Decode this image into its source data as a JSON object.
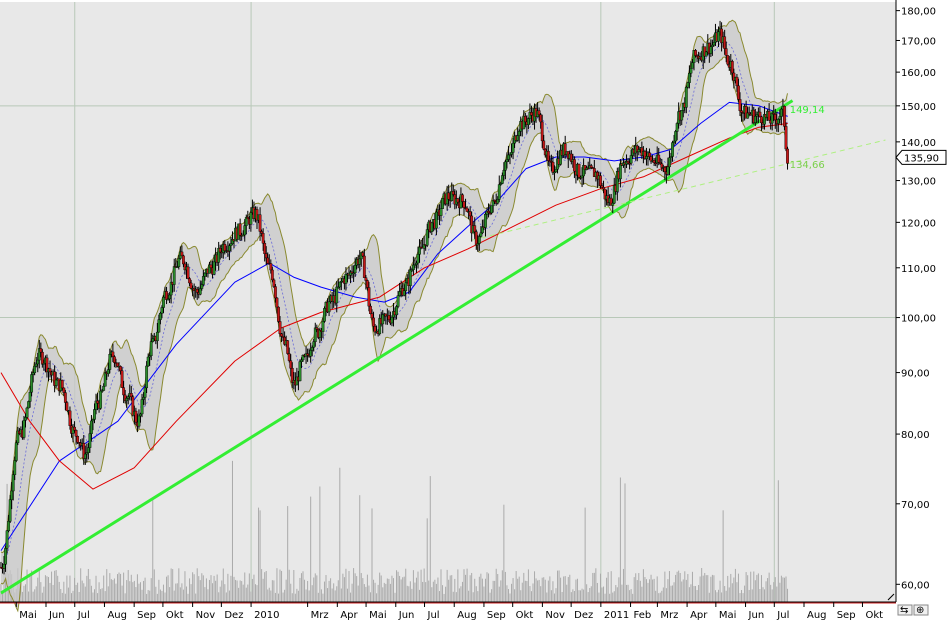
{
  "chart_data": {
    "type": "candlestick",
    "title": "",
    "xlabel": "",
    "ylabel": "",
    "yscale": "log",
    "ylim": [
      58,
      183
    ],
    "grid": true,
    "y_ticks": [
      {
        "value": 60,
        "label": "60,00"
      },
      {
        "value": 70,
        "label": "70,00"
      },
      {
        "value": 80,
        "label": "80,00"
      },
      {
        "value": 90,
        "label": "90,00"
      },
      {
        "value": 100,
        "label": "100,00"
      },
      {
        "value": 110,
        "label": "110,00"
      },
      {
        "value": 120,
        "label": "120,00"
      },
      {
        "value": 130,
        "label": "130,00"
      },
      {
        "value": 140,
        "label": "140,00"
      },
      {
        "value": 150,
        "label": "150,00"
      },
      {
        "value": 160,
        "label": "160,00"
      },
      {
        "value": 170,
        "label": "170,00"
      },
      {
        "value": 180,
        "label": "180,00"
      }
    ],
    "months": [
      {
        "label": "Mai",
        "date": "2009-05"
      },
      {
        "label": "Jun",
        "date": "2009-06"
      },
      {
        "label": "Jul",
        "date": "2009-07"
      },
      {
        "label": "Aug",
        "date": "2009-08"
      },
      {
        "label": "Sep",
        "date": "2009-09"
      },
      {
        "label": "Okt",
        "date": "2009-10"
      },
      {
        "label": "Nov",
        "date": "2009-11"
      },
      {
        "label": "Dez",
        "date": "2009-12"
      },
      {
        "label": "2010",
        "date": "2010-01"
      },
      {
        "label": "Mrz",
        "date": "2010-03"
      },
      {
        "label": "Apr",
        "date": "2010-04"
      },
      {
        "label": "Mai",
        "date": "2010-05"
      },
      {
        "label": "Jun",
        "date": "2010-06"
      },
      {
        "label": "Jul",
        "date": "2010-07"
      },
      {
        "label": "Aug",
        "date": "2010-08"
      },
      {
        "label": "Sep",
        "date": "2010-09"
      },
      {
        "label": "Okt",
        "date": "2010-10"
      },
      {
        "label": "Nov",
        "date": "2010-11"
      },
      {
        "label": "Dez",
        "date": "2010-12"
      },
      {
        "label": "2011",
        "date": "2011-01"
      },
      {
        "label": "Feb",
        "date": "2011-02"
      },
      {
        "label": "Mrz",
        "date": "2011-03"
      },
      {
        "label": "Apr",
        "date": "2011-04"
      },
      {
        "label": "Mai",
        "date": "2011-05"
      },
      {
        "label": "Jun",
        "date": "2011-06"
      },
      {
        "label": "Jul",
        "date": "2011-07"
      },
      {
        "label": "Aug",
        "date": "2011-08"
      },
      {
        "label": "Sep",
        "date": "2011-09"
      },
      {
        "label": "Okt",
        "date": "2011-10"
      }
    ],
    "price_path": [
      [
        "2009-04-15",
        62
      ],
      [
        "2009-05-05",
        80
      ],
      [
        "2009-05-25",
        93
      ],
      [
        "2009-06-15",
        88
      ],
      [
        "2009-07-02",
        80
      ],
      [
        "2009-07-12",
        77
      ],
      [
        "2009-07-25",
        85
      ],
      [
        "2009-08-10",
        93
      ],
      [
        "2009-08-25",
        86
      ],
      [
        "2009-09-05",
        82
      ],
      [
        "2009-09-20",
        95
      ],
      [
        "2009-10-05",
        105
      ],
      [
        "2009-10-20",
        112
      ],
      [
        "2009-11-05",
        105
      ],
      [
        "2009-11-20",
        110
      ],
      [
        "2009-12-05",
        115
      ],
      [
        "2009-12-20",
        118
      ],
      [
        "2010-01-05",
        122
      ],
      [
        "2010-01-20",
        110
      ],
      [
        "2010-02-05",
        95
      ],
      [
        "2010-02-15",
        88
      ],
      [
        "2010-02-25",
        92
      ],
      [
        "2010-03-10",
        97
      ],
      [
        "2010-03-25",
        103
      ],
      [
        "2010-04-10",
        108
      ],
      [
        "2010-04-25",
        112
      ],
      [
        "2010-05-10",
        98
      ],
      [
        "2010-05-25",
        100
      ],
      [
        "2010-06-10",
        106
      ],
      [
        "2010-06-25",
        113
      ],
      [
        "2010-07-10",
        120
      ],
      [
        "2010-07-25",
        126
      ],
      [
        "2010-08-10",
        125
      ],
      [
        "2010-08-25",
        116
      ],
      [
        "2010-09-10",
        124
      ],
      [
        "2010-09-25",
        135
      ],
      [
        "2010-10-10",
        145
      ],
      [
        "2010-10-25",
        148
      ],
      [
        "2010-11-10",
        133
      ],
      [
        "2010-11-25",
        138
      ],
      [
        "2010-12-10",
        132
      ],
      [
        "2010-12-25",
        132
      ],
      [
        "2011-01-10",
        125
      ],
      [
        "2011-01-25",
        135
      ],
      [
        "2011-02-10",
        138
      ],
      [
        "2011-02-25",
        135
      ],
      [
        "2011-03-10",
        133
      ],
      [
        "2011-03-25",
        148
      ],
      [
        "2011-04-10",
        165
      ],
      [
        "2011-04-25",
        168
      ],
      [
        "2011-05-05",
        172
      ],
      [
        "2011-05-15",
        163
      ],
      [
        "2011-05-30",
        148
      ],
      [
        "2011-06-15",
        147
      ],
      [
        "2011-06-30",
        146
      ],
      [
        "2011-07-10",
        148
      ],
      [
        "2011-07-15",
        136
      ]
    ],
    "series": [
      {
        "name": "",
        "color": "#0000ff",
        "points": [
          [
            "2009-04-15",
            64
          ],
          [
            "2009-06-15",
            76
          ],
          [
            "2009-08-15",
            82
          ],
          [
            "2009-10-15",
            95
          ],
          [
            "2009-12-15",
            107
          ],
          [
            "2010-01-20",
            111
          ],
          [
            "2010-02-15",
            108
          ],
          [
            "2010-03-15",
            106
          ],
          [
            "2010-04-20",
            104
          ],
          [
            "2010-05-20",
            103
          ],
          [
            "2010-06-15",
            105
          ],
          [
            "2010-07-15",
            113
          ],
          [
            "2010-08-15",
            119
          ],
          [
            "2010-09-15",
            125
          ],
          [
            "2010-10-15",
            133
          ],
          [
            "2010-11-15",
            136
          ],
          [
            "2010-12-15",
            136
          ],
          [
            "2011-01-15",
            135
          ],
          [
            "2011-02-15",
            136
          ],
          [
            "2011-03-15",
            138
          ],
          [
            "2011-04-15",
            145
          ],
          [
            "2011-05-15",
            151
          ],
          [
            "2011-06-15",
            150
          ],
          [
            "2011-07-15",
            147
          ]
        ]
      },
      {
        "name": "",
        "color": "#e00000",
        "points": [
          [
            "2009-04-15",
            90
          ],
          [
            "2009-05-15",
            82
          ],
          [
            "2009-06-15",
            76
          ],
          [
            "2009-07-20",
            72
          ],
          [
            "2009-09-01",
            75
          ],
          [
            "2009-10-15",
            82
          ],
          [
            "2009-12-15",
            92
          ],
          [
            "2010-02-01",
            98
          ],
          [
            "2010-03-15",
            101
          ],
          [
            "2010-05-15",
            104
          ],
          [
            "2010-07-01",
            110
          ],
          [
            "2010-08-15",
            114
          ],
          [
            "2010-10-01",
            119
          ],
          [
            "2010-11-15",
            124
          ],
          [
            "2011-01-01",
            128
          ],
          [
            "2011-02-15",
            131
          ],
          [
            "2011-04-01",
            136
          ],
          [
            "2011-05-15",
            141
          ],
          [
            "2011-06-15",
            144
          ],
          [
            "2011-07-15",
            145
          ]
        ]
      }
    ],
    "trendlines": [
      {
        "name": "",
        "color": "#33ee33",
        "style": "solid",
        "points": [
          [
            "2009-04-15",
            59
          ],
          [
            "2011-07-20",
            151.5
          ]
        ],
        "end_label": "149,14"
      },
      {
        "name": "",
        "color": "#aef080",
        "style": "dashed",
        "points": [
          [
            "2010-08-20",
            116
          ],
          [
            "2011-10-25",
            140.5
          ]
        ],
        "end_label": "134,66"
      }
    ],
    "last_price": {
      "label": "135,90",
      "value": 135.9
    },
    "volume": {
      "color": "#aaaaaa",
      "note": "daily volume bars along the bottom of the price panel"
    }
  }
}
